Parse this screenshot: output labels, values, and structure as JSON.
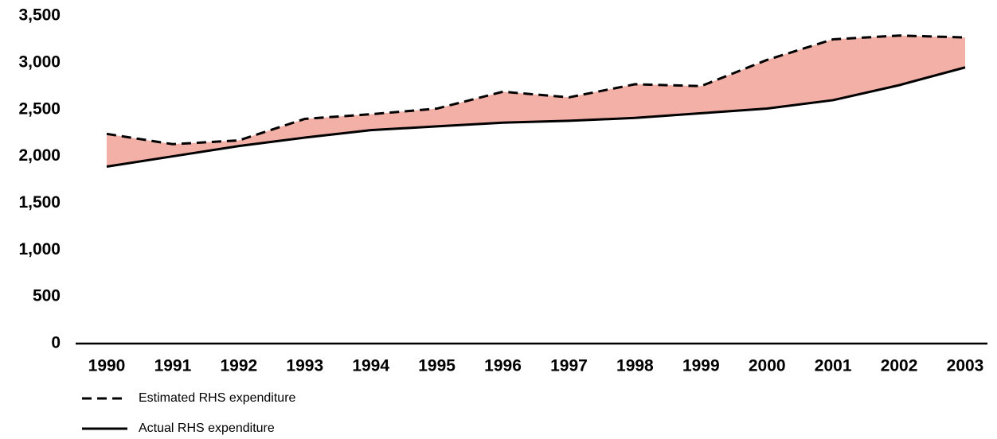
{
  "chart_data": {
    "type": "line",
    "categories": [
      "1990",
      "1991",
      "1992",
      "1993",
      "1994",
      "1995",
      "1996",
      "1997",
      "1998",
      "1999",
      "2000",
      "2001",
      "2002",
      "2003"
    ],
    "series": [
      {
        "name": "Estimated RHS expenditure",
        "color": "#000000",
        "line_style": "dashed",
        "values": [
          2240,
          2130,
          2170,
          2400,
          2450,
          2510,
          2690,
          2630,
          2770,
          2750,
          3030,
          3250,
          3290,
          3270
        ]
      },
      {
        "name": "Actual RHS expenditure",
        "color": "#000000",
        "line_style": "solid",
        "values": [
          1890,
          2000,
          2110,
          2200,
          2280,
          2320,
          2360,
          2380,
          2410,
          2460,
          2510,
          2600,
          2760,
          2950
        ]
      }
    ],
    "area_color": "#f2b0a6",
    "ylim": [
      0,
      3500
    ],
    "yticks": [
      0,
      500,
      {
        "value": 1000,
        "label": "1,000"
      },
      {
        "value": 1500,
        "label": "1,500"
      },
      {
        "value": 2000,
        "label": "2,000"
      },
      {
        "value": 2500,
        "label": "2,500"
      },
      {
        "value": 3000,
        "label": "3,000"
      },
      {
        "value": 3500,
        "label": "3,500"
      }
    ],
    "grid": false,
    "legend": "bottom-left"
  }
}
